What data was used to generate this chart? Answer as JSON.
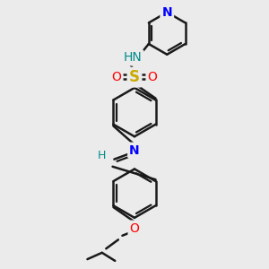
{
  "bg_color": "#ebebeb",
  "bond_color": "#1a1a1a",
  "bond_width": 1.8,
  "atom_colors": {
    "N": "#0000ff",
    "N_teal": "#008b8b",
    "O": "#ff0000",
    "S": "#ccaa00",
    "H_teal": "#008b8b",
    "C": "#1a1a1a"
  },
  "font_size": 10,
  "fig_size": [
    3.0,
    3.0
  ],
  "dpi": 100
}
